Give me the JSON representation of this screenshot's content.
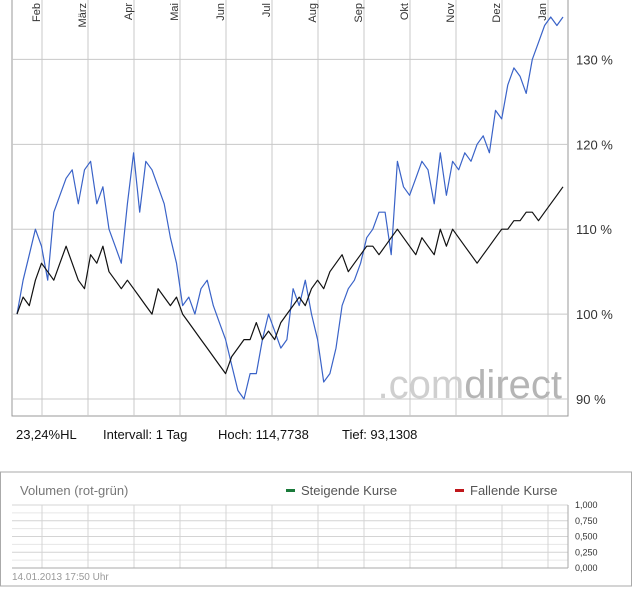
{
  "chart_data": [
    {
      "type": "line",
      "title": "",
      "x_ticks": [
        "Feb",
        "März",
        "Apr",
        "Mai",
        "Jun",
        "Jul",
        "Aug",
        "Sep",
        "Okt",
        "Nov",
        "Dez",
        "Jan"
      ],
      "y_ticks": [
        130,
        120,
        110,
        100,
        90
      ],
      "y_tick_suffix": " %",
      "ylim": [
        88,
        137
      ],
      "grid": true,
      "series": [
        {
          "color": "#3a63c8",
          "values": [
            100,
            104,
            107,
            110,
            108,
            104,
            112,
            114,
            116,
            117,
            113,
            117,
            118,
            113,
            115,
            110,
            108,
            106,
            113,
            119,
            112,
            118,
            117,
            115,
            113,
            109,
            106,
            101,
            102,
            100,
            103,
            104,
            101,
            99,
            97,
            94,
            91,
            90,
            93,
            93,
            97,
            100,
            98,
            96,
            97,
            103,
            101,
            104,
            100,
            97,
            92,
            93,
            96,
            101,
            103,
            104,
            106,
            109,
            110,
            112,
            112,
            107,
            118,
            115,
            114,
            116,
            118,
            117,
            113,
            119,
            114,
            118,
            117,
            119,
            118,
            120,
            121,
            119,
            124,
            123,
            127,
            129,
            128,
            126,
            130,
            132,
            134,
            135,
            134,
            135
          ]
        },
        {
          "color": "#111111",
          "values": [
            100,
            102,
            101,
            104,
            106,
            105,
            104,
            106,
            108,
            106,
            104,
            103,
            107,
            106,
            108,
            105,
            104,
            103,
            104,
            103,
            102,
            101,
            100,
            103,
            102,
            101,
            102,
            100,
            99,
            98,
            97,
            96,
            95,
            94,
            93,
            95,
            96,
            97,
            97,
            99,
            97,
            98,
            97,
            99,
            100,
            101,
            102,
            101,
            103,
            104,
            103,
            105,
            106,
            107,
            105,
            106,
            107,
            108,
            108,
            107,
            108,
            109,
            110,
            109,
            108,
            107,
            109,
            108,
            107,
            110,
            108,
            110,
            109,
            108,
            107,
            106,
            107,
            108,
            109,
            110,
            110,
            111,
            111,
            112,
            112,
            111,
            112,
            113,
            114,
            115
          ]
        }
      ]
    },
    {
      "type": "bar",
      "title": "Volumen (rot-grün)",
      "y_ticks": [
        "1,000",
        "0,750",
        "0,500",
        "0,250",
        "0,000"
      ],
      "ylim": [
        0,
        1
      ],
      "legend": [
        {
          "label": "Steigende Kurse",
          "color": "#1a7a3a"
        },
        {
          "label": "Fallende Kurse",
          "color": "#c0171b"
        }
      ],
      "grid": true,
      "values": []
    }
  ],
  "info": {
    "performance": "23,24%HL",
    "interval": "Intervall: 1 Tag",
    "high": "Hoch: 114,7738",
    "low": "Tief: 93,1308"
  },
  "watermark": {
    "part1": ".com",
    "part2": "direct"
  },
  "timestamp": "14.01.2013 17:50 Uhr"
}
